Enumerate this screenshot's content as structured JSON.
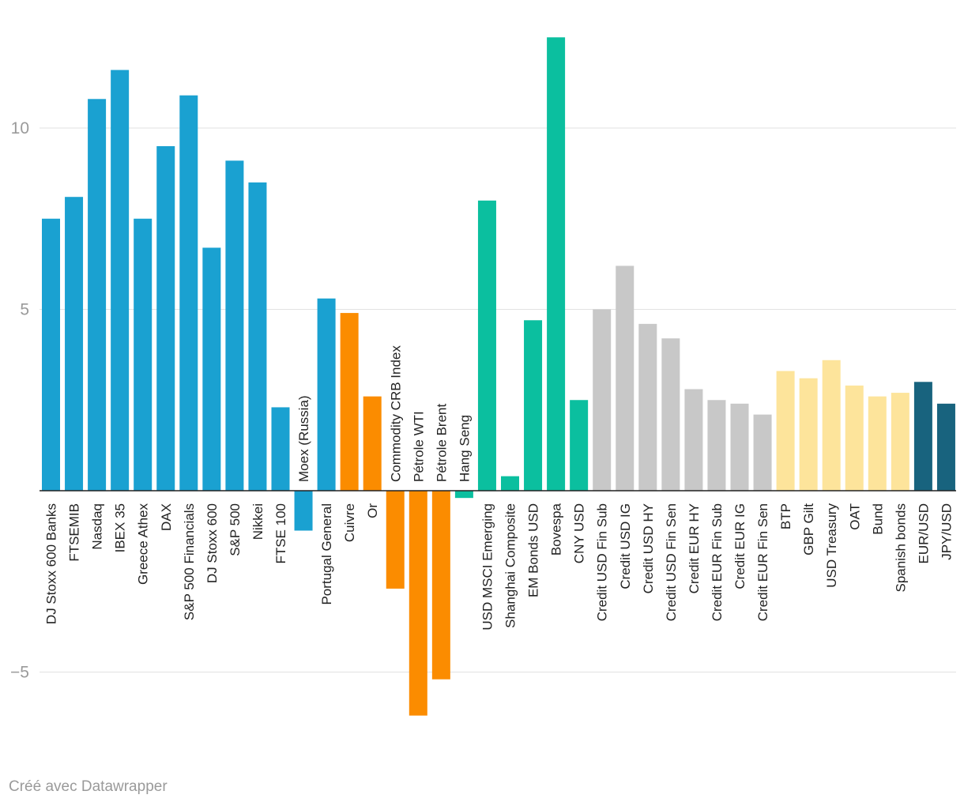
{
  "chart_data": {
    "type": "bar",
    "ylim": [
      -7,
      13
    ],
    "yticks": [
      10,
      5,
      -5
    ],
    "ytick_labels": [
      "10",
      "5",
      "−5"
    ],
    "grid": true,
    "colors": {
      "equity": "#1aa1d1",
      "commodity": "#fb8c00",
      "emerging": "#0bbf9f",
      "credit": "#c8c8c8",
      "govt": "#fde49b",
      "fx": "#18637e"
    },
    "categories": [
      "DJ Stoxx 600 Banks",
      "FTSEMIB",
      "Nasdaq",
      "IBEX 35",
      "Greece Athex",
      "DAX",
      "S&P 500 Financials",
      "DJ Stoxx 600",
      "S&P 500",
      "Nikkei",
      "FTSE 100",
      "Moex (Russia)",
      "Portugal General",
      "Cuivre",
      "Or",
      "Commodity CRB Index",
      "Pétrole WTI",
      "Pétrole Brent",
      "Hang Seng",
      "USD MSCI Emerging",
      "Shanghai Composite",
      "EM Bonds USD",
      "Bovespa",
      "CNY USD",
      "Credit USD Fin Sub",
      "Credit USD IG",
      "Credit USD HY",
      "Credit USD Fin Sen",
      "Credit EUR HY",
      "Credit EUR Fin Sub",
      "Credit EUR IG",
      "Credit EUR Fin Sen",
      "BTP",
      "GBP Gilt",
      "USD Treasury",
      "OAT",
      "Bund",
      "Spanish bonds",
      "EUR/USD",
      "JPY/USD"
    ],
    "values": [
      7.5,
      8.1,
      10.8,
      11.6,
      7.5,
      9.5,
      10.9,
      6.7,
      9.1,
      8.5,
      2.3,
      -1.1,
      5.3,
      4.9,
      2.6,
      -2.7,
      -6.2,
      -5.2,
      -0.2,
      8.0,
      0.4,
      4.7,
      12.5,
      2.5,
      5.0,
      6.2,
      4.6,
      4.2,
      2.8,
      2.5,
      2.4,
      2.1,
      3.3,
      3.1,
      3.6,
      2.9,
      2.6,
      2.7,
      3.0,
      2.4
    ],
    "groups": [
      "equity",
      "equity",
      "equity",
      "equity",
      "equity",
      "equity",
      "equity",
      "equity",
      "equity",
      "equity",
      "equity",
      "equity",
      "equity",
      "commodity",
      "commodity",
      "commodity",
      "commodity",
      "commodity",
      "emerging",
      "emerging",
      "emerging",
      "emerging",
      "emerging",
      "emerging",
      "credit",
      "credit",
      "credit",
      "credit",
      "credit",
      "credit",
      "credit",
      "credit",
      "govt",
      "govt",
      "govt",
      "govt",
      "govt",
      "govt",
      "fx",
      "fx"
    ]
  },
  "footer": {
    "credit": "Créé avec Datawrapper"
  }
}
